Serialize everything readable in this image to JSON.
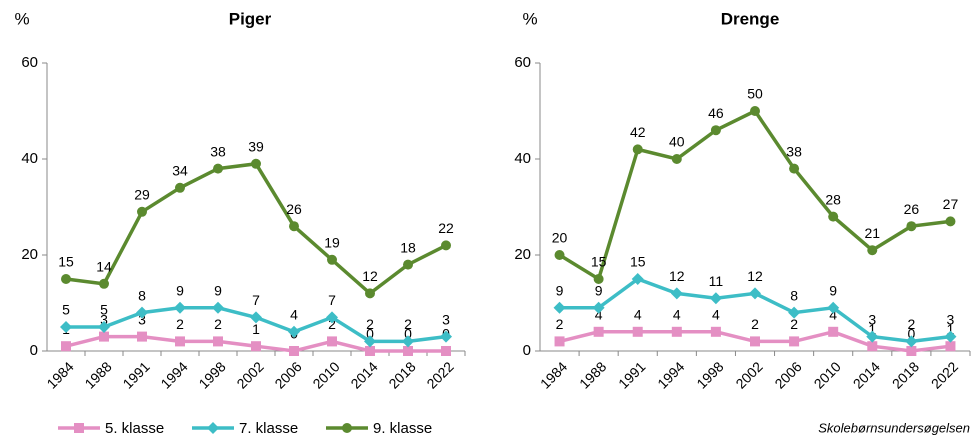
{
  "chart_data": [
    {
      "type": "line",
      "title": "Piger",
      "ylabel": "%",
      "categories": [
        "1984",
        "1988",
        "1991",
        "1994",
        "1998",
        "2002",
        "2006",
        "2010",
        "2014",
        "2018",
        "2022"
      ],
      "ylim": [
        0,
        60
      ],
      "yticks": [
        0,
        20,
        40,
        60
      ],
      "grid": false,
      "value_labels_shown": true,
      "series": [
        {
          "name": "5. klasse",
          "color": "#e48fc3",
          "marker": "square",
          "values": [
            1,
            3,
            3,
            2,
            2,
            1,
            0,
            2,
            0,
            0,
            0
          ]
        },
        {
          "name": "7. klasse",
          "color": "#3dbdc6",
          "marker": "diamond",
          "values": [
            5,
            5,
            8,
            9,
            9,
            7,
            4,
            7,
            2,
            2,
            3
          ]
        },
        {
          "name": "9. klasse",
          "color": "#5b8a2f",
          "marker": "circle",
          "values": [
            15,
            14,
            29,
            34,
            38,
            39,
            26,
            19,
            12,
            18,
            22
          ]
        }
      ]
    },
    {
      "type": "line",
      "title": "Drenge",
      "ylabel": "%",
      "categories": [
        "1984",
        "1988",
        "1991",
        "1994",
        "1998",
        "2002",
        "2006",
        "2010",
        "2014",
        "2018",
        "2022"
      ],
      "ylim": [
        0,
        60
      ],
      "yticks": [
        0,
        20,
        40,
        60
      ],
      "grid": false,
      "value_labels_shown": true,
      "series": [
        {
          "name": "5. klasse",
          "color": "#e48fc3",
          "marker": "square",
          "values": [
            2,
            4,
            4,
            4,
            4,
            2,
            2,
            4,
            1,
            0,
            1
          ]
        },
        {
          "name": "7. klasse",
          "color": "#3dbdc6",
          "marker": "diamond",
          "values": [
            9,
            9,
            15,
            12,
            11,
            12,
            8,
            9,
            3,
            2,
            3
          ]
        },
        {
          "name": "9. klasse",
          "color": "#5b8a2f",
          "marker": "circle",
          "values": [
            20,
            15,
            42,
            40,
            46,
            50,
            38,
            28,
            21,
            26,
            27
          ]
        }
      ]
    }
  ],
  "source": "Skolebørnsundersøgelsen"
}
